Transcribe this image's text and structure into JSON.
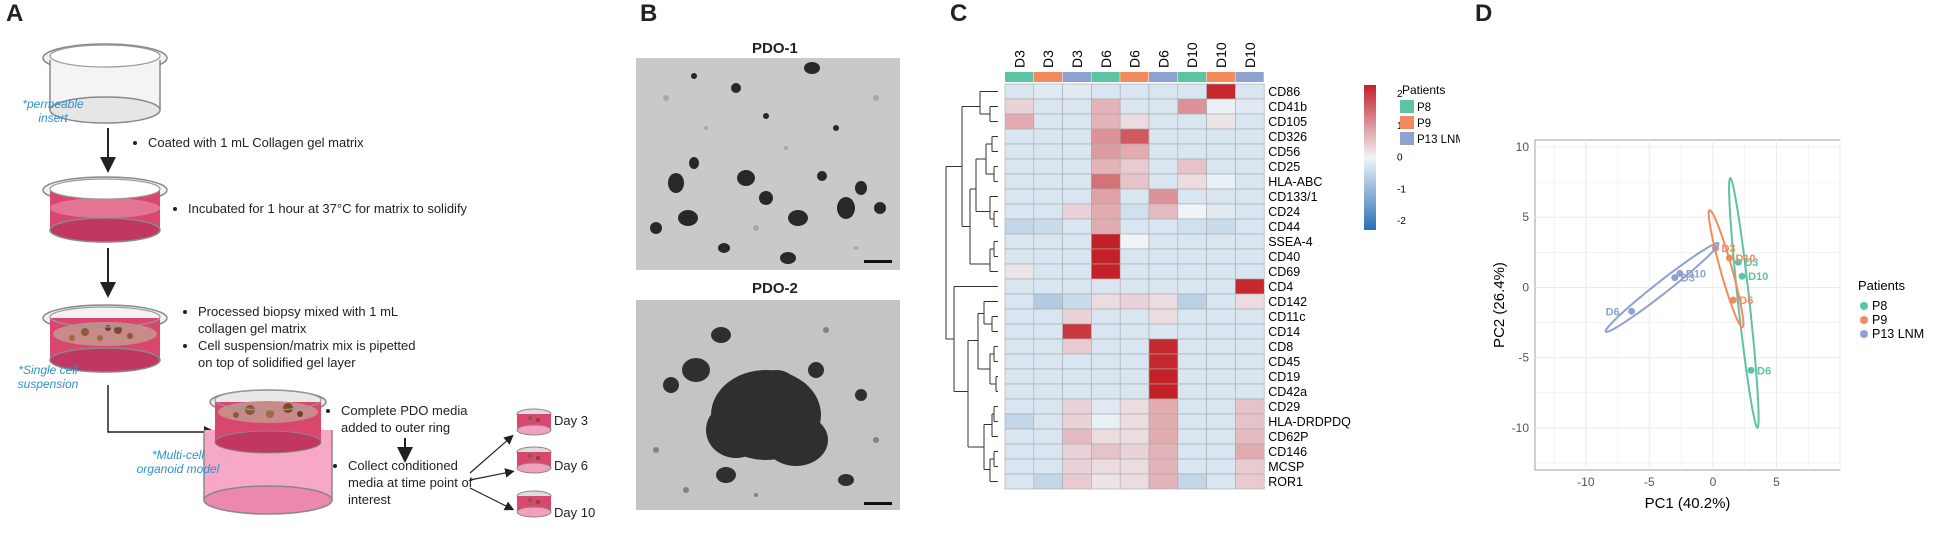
{
  "panels": {
    "A": "A",
    "B": "B",
    "C": "C",
    "D": "D"
  },
  "panelA": {
    "notes": {
      "insert": [
        "*permeable",
        "insert"
      ],
      "single": [
        "*Single cell",
        "suspension"
      ],
      "multi": [
        "*Multi-cell",
        "organoid model"
      ]
    },
    "steps": [
      "Coated with 1 mL Collagen gel matrix",
      "Incubated for 1 hour at 37°C for matrix to solidify",
      "Processed biopsy mixed with 1 mL collagen gel matrix",
      "Cell suspension/matrix mix is pipetted on top of solidified gel layer"
    ],
    "complete": "Complete PDO media added to outer ring",
    "collect": "Collect conditioned media at time point of interest",
    "days": [
      "Day 3",
      "Day 6",
      "Day 10"
    ]
  },
  "panelB": {
    "titles": [
      "PDO-1",
      "PDO-2"
    ]
  },
  "heatmap": {
    "columns": [
      "D3",
      "D3",
      "D3",
      "D6",
      "D6",
      "D6",
      "D10",
      "D10",
      "D10"
    ],
    "col_patients": [
      "P8",
      "P9",
      "P13",
      "P8",
      "P9",
      "P13",
      "P8",
      "P9",
      "P13"
    ],
    "rows": [
      "CD86",
      "CD41b",
      "CD105",
      "CD326",
      "CD56",
      "CD25",
      "HLA-ABC",
      "CD133/1",
      "CD24",
      "CD44",
      "SSEA-4",
      "CD40",
      "CD69",
      "CD4",
      "CD142",
      "CD11c",
      "CD14",
      "CD8",
      "CD45",
      "CD19",
      "CD42a",
      "CD29",
      "HLA-DRDPDQ",
      "CD62P",
      "CD146",
      "MCSP",
      "ROR1"
    ],
    "values": [
      [
        -0.3,
        -0.2,
        -0.2,
        -0.3,
        -0.3,
        -0.3,
        -0.3,
        2.5,
        -0.3
      ],
      [
        0.4,
        -0.3,
        -0.3,
        0.8,
        -0.3,
        -0.3,
        1.2,
        -0.1,
        -0.2
      ],
      [
        0.9,
        -0.3,
        -0.3,
        0.8,
        0.3,
        -0.3,
        -0.3,
        0.2,
        -0.3
      ],
      [
        -0.3,
        -0.3,
        -0.3,
        1.2,
        1.9,
        -0.3,
        -0.3,
        -0.3,
        -0.3
      ],
      [
        -0.3,
        -0.3,
        -0.3,
        1.1,
        0.9,
        -0.3,
        -0.3,
        -0.3,
        -0.3
      ],
      [
        -0.3,
        -0.3,
        -0.3,
        0.8,
        0.5,
        -0.3,
        0.6,
        -0.3,
        -0.3
      ],
      [
        -0.3,
        -0.3,
        -0.3,
        1.6,
        0.6,
        -0.3,
        0.3,
        -0.1,
        -0.3
      ],
      [
        -0.3,
        -0.3,
        -0.3,
        1.0,
        -0.3,
        1.2,
        -0.3,
        -0.3,
        -0.3
      ],
      [
        -0.3,
        -0.3,
        0.4,
        0.9,
        -0.4,
        0.7,
        0.0,
        -0.2,
        -0.3
      ],
      [
        -0.6,
        -0.5,
        -0.3,
        0.9,
        -0.3,
        -0.3,
        -0.4,
        -0.5,
        -0.3
      ],
      [
        -0.3,
        -0.3,
        -0.3,
        2.6,
        0.0,
        -0.3,
        -0.3,
        -0.3,
        -0.3
      ],
      [
        -0.3,
        -0.3,
        -0.3,
        2.6,
        -0.3,
        -0.3,
        -0.3,
        -0.3,
        -0.3
      ],
      [
        0.2,
        -0.3,
        -0.3,
        2.6,
        -0.3,
        -0.3,
        -0.3,
        -0.3,
        -0.3
      ],
      [
        -0.3,
        -0.3,
        -0.3,
        -0.3,
        -0.3,
        -0.3,
        -0.3,
        -0.3,
        2.5
      ],
      [
        -0.3,
        -0.8,
        -0.5,
        0.3,
        0.4,
        0.3,
        -0.7,
        -0.3,
        0.3
      ],
      [
        -0.3,
        -0.3,
        0.4,
        -0.3,
        -0.3,
        0.3,
        -0.3,
        -0.3,
        -0.3
      ],
      [
        -0.3,
        -0.3,
        2.3,
        -0.3,
        -0.3,
        -0.3,
        -0.3,
        -0.3,
        -0.3
      ],
      [
        -0.3,
        -0.3,
        0.5,
        -0.3,
        -0.3,
        2.5,
        -0.3,
        -0.3,
        -0.3
      ],
      [
        -0.3,
        -0.3,
        -0.3,
        -0.3,
        -0.3,
        2.5,
        -0.3,
        -0.3,
        -0.3
      ],
      [
        -0.3,
        -0.3,
        -0.3,
        -0.3,
        -0.3,
        2.6,
        -0.3,
        -0.3,
        -0.3
      ],
      [
        -0.3,
        -0.3,
        -0.3,
        -0.3,
        -0.3,
        2.6,
        -0.3,
        -0.3,
        -0.3
      ],
      [
        -0.3,
        -0.3,
        0.4,
        -0.2,
        0.3,
        0.9,
        -0.3,
        -0.3,
        0.6
      ],
      [
        -0.6,
        -0.3,
        0.4,
        -0.1,
        0.3,
        0.9,
        -0.3,
        -0.3,
        0.6
      ],
      [
        -0.3,
        -0.3,
        0.7,
        0.3,
        0.3,
        0.9,
        -0.3,
        -0.3,
        0.7
      ],
      [
        -0.3,
        -0.3,
        0.4,
        0.6,
        0.4,
        0.8,
        -0.3,
        -0.3,
        0.9
      ],
      [
        -0.3,
        -0.3,
        0.4,
        0.3,
        0.3,
        0.8,
        -0.3,
        -0.3,
        0.5
      ],
      [
        -0.3,
        -0.6,
        0.5,
        0.2,
        0.3,
        0.8,
        -0.6,
        -0.3,
        0.5
      ]
    ],
    "scale_ticks": [
      "2",
      "1",
      "0",
      "-1",
      "-2"
    ],
    "legend_title": "Patients",
    "legend": [
      {
        "name": "P8",
        "color": "#5cc4a2"
      },
      {
        "name": "P9",
        "color": "#f28a5e"
      },
      {
        "name": "P13 LNM",
        "color": "#8fa1cf"
      }
    ]
  },
  "chart_data": {
    "type": "scatter",
    "xlabel": "PC1 (40.2%)",
    "ylabel": "PC2 (26.4%)",
    "xlim": [
      -14,
      10
    ],
    "ylim": [
      -13,
      10.5
    ],
    "xticks": [
      "-10",
      "-5",
      "0",
      "5"
    ],
    "yticks": [
      "10",
      "5",
      "0",
      "-5",
      "-10"
    ],
    "grid": true,
    "legend_title": "Patients",
    "series": [
      {
        "name": "P8",
        "color": "#5cc4a2",
        "points": [
          {
            "x": 2.0,
            "y": 1.8,
            "label": "D3"
          },
          {
            "x": 2.3,
            "y": 0.8,
            "label": "D10"
          },
          {
            "x": 3.0,
            "y": -5.9,
            "label": "D6"
          }
        ]
      },
      {
        "name": "P9",
        "color": "#f28a5e",
        "points": [
          {
            "x": 0.2,
            "y": 2.8,
            "label": "D3"
          },
          {
            "x": 1.3,
            "y": 2.1,
            "label": "D10"
          },
          {
            "x": 1.6,
            "y": -0.9,
            "label": "D6"
          }
        ]
      },
      {
        "name": "P13 LNM",
        "color": "#8fa1cf",
        "points": [
          {
            "x": -3.0,
            "y": 0.7,
            "label": "D3"
          },
          {
            "x": -2.6,
            "y": 1.0,
            "label": "D10"
          },
          {
            "x": -6.4,
            "y": -1.7,
            "label": "D6"
          }
        ]
      }
    ],
    "legend_display": [
      "P8",
      "P9",
      "P13 LNM"
    ]
  }
}
